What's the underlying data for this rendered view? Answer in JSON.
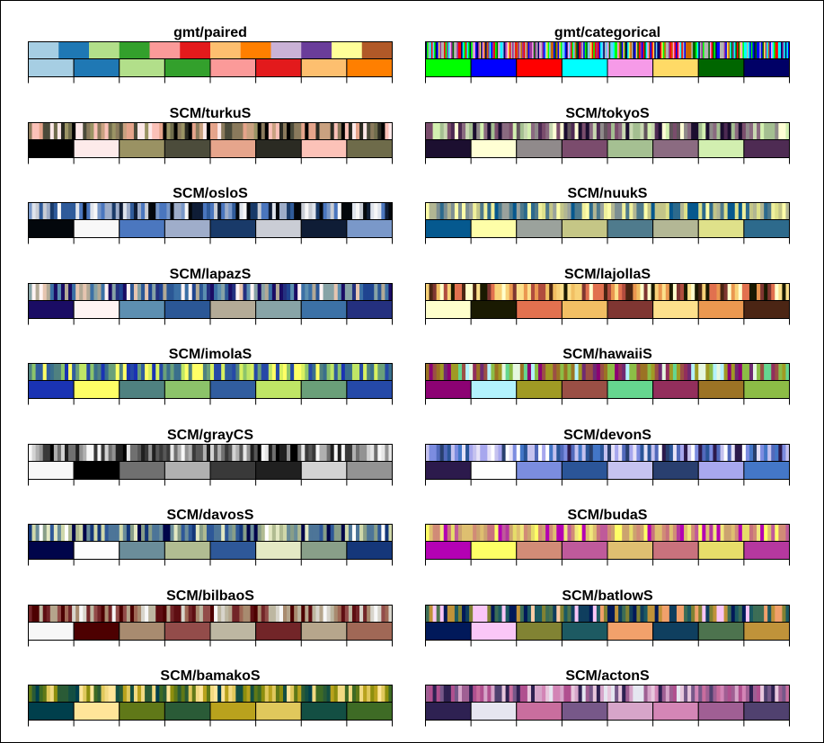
{
  "figure": {
    "title": "",
    "background": "#ffffff",
    "panel_titles": [
      "gmt/paired",
      "gmt/categorical",
      "SCM/turkuS",
      "SCM/tokyoS",
      "SCM/osloS",
      "SCM/nuukS",
      "SCM/lapazS",
      "SCM/lajollaS",
      "SCM/imolaS",
      "SCM/hawaiiS",
      "SCM/grayCS",
      "SCM/devonS",
      "SCM/davosS",
      "SCM/budaS",
      "SCM/bilbaoS",
      "SCM/batlowS",
      "SCM/bamakoS",
      "SCM/actonS"
    ]
  },
  "chart_data": [
    {
      "type": "heatmap",
      "title": "gmt/paired",
      "top_strip_colors": [
        "#a6cee3",
        "#1f78b4",
        "#b2df8a",
        "#33a02c",
        "#fb9a99",
        "#e31a1c",
        "#fdbf6f",
        "#ff7f00",
        "#cab2d6",
        "#6a3d9a",
        "#ffff99",
        "#b15928"
      ],
      "bottom_strip_colors": [
        "#a6cee3",
        "#1f78b4",
        "#b2df8a",
        "#33a02c",
        "#fb9a99",
        "#e31a1c",
        "#fdbf6f",
        "#ff7f00"
      ],
      "ticks": 9
    },
    {
      "type": "heatmap",
      "title": "gmt/categorical",
      "top_strip_colors": [
        "#00ff00",
        "#0000ff",
        "#ff0000",
        "#00ffff",
        "#ff99ee",
        "#ffdd55",
        "#006600",
        "#000066",
        "#b3b3b3",
        "#cc6600",
        "#66ccff",
        "#993399"
      ],
      "top_strip_segments": 256,
      "bottom_strip_colors": [
        "#00ff00",
        "#0000ff",
        "#ff0000",
        "#00ffff",
        "#f69ae8",
        "#ffda66",
        "#006600",
        "#000066"
      ],
      "ticks": 9
    },
    {
      "type": "heatmap",
      "title": "SCM/turkuS",
      "top_strip_colors": [
        "#000000",
        "#fde8e8",
        "#9b9465",
        "#4b4b3a",
        "#e5a48b",
        "#2a2a22",
        "#fbc1b8",
        "#6f6c4c",
        "#c9a180",
        "#8a7a5c"
      ],
      "top_strip_segments": 100,
      "bottom_strip_colors": [
        "#000000",
        "#fdeaea",
        "#9a9263",
        "#4c4c3b",
        "#e6a58c",
        "#2b2b23",
        "#fcc2b8",
        "#6e6b4a"
      ],
      "ticks": 9
    },
    {
      "type": "heatmap",
      "title": "SCM/tokyoS",
      "top_strip_colors": [
        "#1b0e2f",
        "#ffffd5",
        "#8f8a8a",
        "#7a4d6c",
        "#a4bf91",
        "#8a6a80",
        "#d3f0b0",
        "#4d2a52",
        "#c9d8b1",
        "#62555c"
      ],
      "top_strip_segments": 100,
      "bottom_strip_colors": [
        "#1c0f30",
        "#ffffd4",
        "#908a8b",
        "#7b4c6d",
        "#a5c092",
        "#8b6b81",
        "#d2efb0",
        "#4e2b53"
      ],
      "ticks": 9
    },
    {
      "type": "heatmap",
      "title": "SCM/osloS",
      "top_strip_colors": [
        "#03070c",
        "#f7f7f7",
        "#4a76be",
        "#9eadc9",
        "#193a68",
        "#c9cdd5",
        "#0f1d36",
        "#7897c8",
        "#2f5b9a",
        "#dfe4ec"
      ],
      "top_strip_segments": 100,
      "bottom_strip_colors": [
        "#03070c",
        "#f8f8f8",
        "#4b77bf",
        "#9fadca",
        "#193a69",
        "#cacdd5",
        "#0f1d36",
        "#7a98c9"
      ],
      "ticks": 9
    },
    {
      "type": "heatmap",
      "title": "SCM/nuukS",
      "top_strip_colors": [
        "#06588e",
        "#fdfda8",
        "#9aa29d",
        "#c3c588",
        "#4e7a8c",
        "#b2b693",
        "#dde08a",
        "#2c6a8d",
        "#f0f09c",
        "#7c8f93"
      ],
      "top_strip_segments": 100,
      "bottom_strip_colors": [
        "#05598f",
        "#fefea8",
        "#9ba29c",
        "#c5c686",
        "#4f7b8d",
        "#b3b795",
        "#dfe18a",
        "#2d6a8c"
      ],
      "ticks": 9
    },
    {
      "type": "heatmap",
      "title": "SCM/lapazS",
      "top_strip_colors": [
        "#1a0c64",
        "#fff3f3",
        "#5c8fb0",
        "#2b5795",
        "#b3aa96",
        "#87a3a6",
        "#3b70a5",
        "#24307f",
        "#e6c5b0",
        "#1f4490"
      ],
      "top_strip_segments": 100,
      "bottom_strip_colors": [
        "#1a0c64",
        "#fff4f3",
        "#5d8fb1",
        "#2b5796",
        "#b4ab97",
        "#88a4a7",
        "#3c71a6",
        "#24307f"
      ],
      "ticks": 9
    },
    {
      "type": "heatmap",
      "title": "SCM/lajollaS",
      "top_strip_colors": [
        "#ffffcc",
        "#1a1a01",
        "#e1714f",
        "#f1bf63",
        "#7e3631",
        "#fce08c",
        "#ea9750",
        "#4a2513",
        "#f8d278",
        "#b04c3e"
      ],
      "top_strip_segments": 100,
      "bottom_strip_colors": [
        "#ffffcc",
        "#1a1a02",
        "#e2714f",
        "#f2bf64",
        "#7f3632",
        "#fde08c",
        "#eb9850",
        "#4b2514"
      ],
      "ticks": 9
    },
    {
      "type": "heatmap",
      "title": "SCM/imolaS",
      "top_strip_colors": [
        "#1a33b3",
        "#ffff66",
        "#4f8180",
        "#8cc46b",
        "#315d9e",
        "#bfe666",
        "#6aa07a",
        "#2649a7",
        "#d8f060",
        "#3a6f8c"
      ],
      "top_strip_segments": 100,
      "bottom_strip_colors": [
        "#1a33b3",
        "#fefe66",
        "#4f8180",
        "#8cc36a",
        "#315d9f",
        "#bfe566",
        "#6a9f79",
        "#2549a8"
      ],
      "ticks": 9
    },
    {
      "type": "heatmap",
      "title": "SCM/hawaiiS",
      "top_strip_colors": [
        "#8c0273",
        "#b3f2fd",
        "#a09a24",
        "#9b4f45",
        "#65d690",
        "#922e5c",
        "#9b7324",
        "#8cbd46",
        "#e6f7e0",
        "#6f2a72"
      ],
      "top_strip_segments": 100,
      "bottom_strip_colors": [
        "#8c0273",
        "#b3f2fd",
        "#a09a24",
        "#9a4f45",
        "#66d68f",
        "#932e5c",
        "#9c7325",
        "#8cbc46"
      ],
      "ticks": 9
    },
    {
      "type": "heatmap",
      "title": "SCM/grayCS",
      "top_strip_colors": [
        "#f7f7f7",
        "#000000",
        "#707070",
        "#b0b0b0",
        "#393939",
        "#202020",
        "#d3d3d3",
        "#939393",
        "#575757",
        "#e6e6e6"
      ],
      "top_strip_segments": 100,
      "bottom_strip_colors": [
        "#f7f7f7",
        "#000000",
        "#707070",
        "#b0b0b0",
        "#393939",
        "#202020",
        "#d3d3d3",
        "#939393"
      ],
      "ticks": 9
    },
    {
      "type": "heatmap",
      "title": "SCM/devonS",
      "top_strip_colors": [
        "#2c1a4c",
        "#fefeff",
        "#7c8ce0",
        "#2a5598",
        "#c5c2ef",
        "#283f6e",
        "#a7a7ee",
        "#4376c7",
        "#e6e2f8",
        "#5169bb"
      ],
      "top_strip_segments": 100,
      "bottom_strip_colors": [
        "#2c1a4c",
        "#fefefe",
        "#7b8ddf",
        "#2b5598",
        "#c6c3f0",
        "#293f6f",
        "#a8a8ee",
        "#4477c7"
      ],
      "ticks": 9
    },
    {
      "type": "heatmap",
      "title": "SCM/davosS",
      "top_strip_colors": [
        "#00054a",
        "#fefefe",
        "#6a8d99",
        "#b0bb91",
        "#2e5898",
        "#e3e8c2",
        "#889e88",
        "#143779",
        "#d0d8aa",
        "#4d7598"
      ],
      "top_strip_segments": 100,
      "bottom_strip_colors": [
        "#00054a",
        "#fefefe",
        "#6b8d9a",
        "#b1bc92",
        "#2e5899",
        "#e4e9c4",
        "#899f89",
        "#15377a"
      ],
      "ticks": 9
    },
    {
      "type": "heatmap",
      "title": "SCM/budaS",
      "top_strip_colors": [
        "#b301b3",
        "#ffff66",
        "#d18b77",
        "#bf5a9a",
        "#debf70",
        "#c8727d",
        "#e6dd6a",
        "#b4389e",
        "#f0e87c",
        "#cca36f"
      ],
      "top_strip_segments": 100,
      "bottom_strip_colors": [
        "#b401b4",
        "#feff66",
        "#d28c77",
        "#bf5a9b",
        "#dfbf71",
        "#c9727d",
        "#e7de6a",
        "#b5389f"
      ],
      "ticks": 9
    },
    {
      "type": "heatmap",
      "title": "SCM/bilbaoS",
      "top_strip_colors": [
        "#f7f7f7",
        "#4d0001",
        "#a88b6f",
        "#924c49",
        "#bdb7a1",
        "#722528",
        "#b5a58c",
        "#9f6855",
        "#d8d5cc",
        "#5e0e12"
      ],
      "top_strip_segments": 100,
      "bottom_strip_colors": [
        "#f7f7f7",
        "#4d0001",
        "#a88b70",
        "#934c4a",
        "#bdb7a2",
        "#722528",
        "#b6a68c",
        "#a06856"
      ],
      "ticks": 9
    },
    {
      "type": "heatmap",
      "title": "SCM/batlowS",
      "top_strip_colors": [
        "#011959",
        "#fac6f7",
        "#818232",
        "#1c5a62",
        "#f1a06b",
        "#0f3e5e",
        "#4d734d",
        "#c09239",
        "#fecca6",
        "#3c6d56"
      ],
      "top_strip_segments": 100,
      "bottom_strip_colors": [
        "#01195a",
        "#fac7f7",
        "#818333",
        "#1d5a62",
        "#f2a16b",
        "#0f3f5f",
        "#4d734e",
        "#c0933a"
      ],
      "ticks": 9
    },
    {
      "type": "heatmap",
      "title": "SCM/bamakoS",
      "top_strip_colors": [
        "#003f4d",
        "#ffe599",
        "#5f7817",
        "#2a5b36",
        "#b8a21d",
        "#e0c85c",
        "#134f43",
        "#3e6a24",
        "#8d8e0e",
        "#f2da82"
      ],
      "top_strip_segments": 100,
      "bottom_strip_colors": [
        "#003f4c",
        "#ffe599",
        "#607818",
        "#2a5b37",
        "#b9a21d",
        "#e0c85c",
        "#134f43",
        "#3e6b25"
      ],
      "ticks": 9
    },
    {
      "type": "heatmap",
      "title": "SCM/actonS",
      "top_strip_colors": [
        "#2e2151",
        "#e5e6f0",
        "#c86d9e",
        "#765889",
        "#d6a5c9",
        "#d385b6",
        "#9f5f93",
        "#4f416f",
        "#e8c7dd",
        "#b0508f"
      ],
      "top_strip_segments": 100,
      "bottom_strip_colors": [
        "#2e2152",
        "#e6e6f0",
        "#c96e9e",
        "#775889",
        "#d7a5c9",
        "#d486b6",
        "#a05f94",
        "#50416f"
      ],
      "ticks": 9
    }
  ]
}
